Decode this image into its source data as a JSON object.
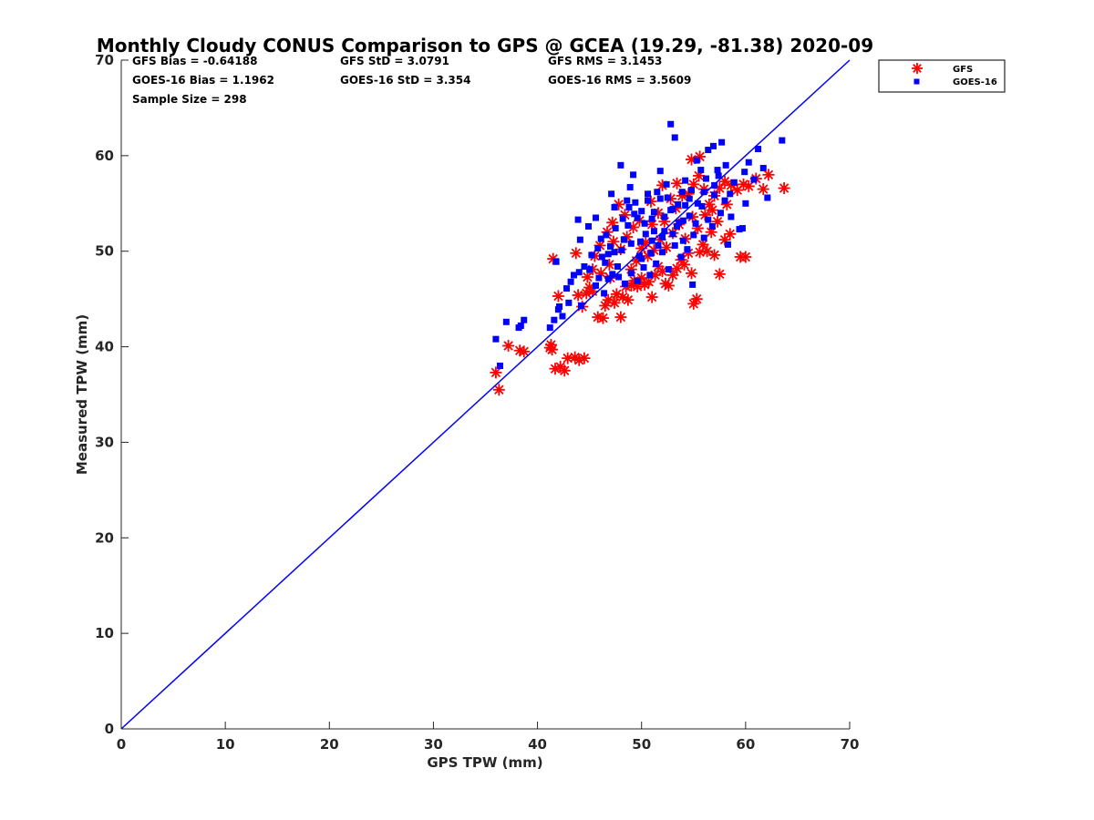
{
  "chart_data": {
    "type": "scatter",
    "title": "Monthly Cloudy CONUS Comparison to GPS @ GCEA (19.29, -81.38) 2020-09",
    "xlabel": "GPS TPW (mm)",
    "ylabel": "Measured TPW (mm)",
    "xlim": [
      0,
      70
    ],
    "ylim": [
      0,
      70
    ],
    "xticks": [
      "0",
      "10",
      "20",
      "30",
      "40",
      "50",
      "60",
      "70"
    ],
    "yticks": [
      "0",
      "10",
      "20",
      "30",
      "40",
      "50",
      "60",
      "70"
    ],
    "grid": false,
    "legend_position": "top-right",
    "reference_line": {
      "x": [
        0,
        70
      ],
      "y": [
        0,
        70
      ],
      "color": "#0000ff"
    },
    "stats": {
      "gfs_bias": "GFS Bias = -0.64188",
      "gfs_std": "GFS StD = 3.0791",
      "gfs_rms": "GFS RMS = 3.1453",
      "goes_bias": "GOES-16 Bias = 1.1962",
      "goes_std": "GOES-16 StD = 3.354",
      "goes_rms": "GOES-16 RMS = 3.5609",
      "sample_size": "Sample Size = 298"
    },
    "series": [
      {
        "name": "GFS",
        "marker": "asterisk",
        "color": "#ff0000",
        "points": [
          [
            36.0,
            37.3
          ],
          [
            36.3,
            35.5
          ],
          [
            37.2,
            40.1
          ],
          [
            38.3,
            39.6
          ],
          [
            38.7,
            39.5
          ],
          [
            41.2,
            39.9
          ],
          [
            41.4,
            39.7
          ],
          [
            41.3,
            40.2
          ],
          [
            41.5,
            49.2
          ],
          [
            41.7,
            37.7
          ],
          [
            42.0,
            45.3
          ],
          [
            42.2,
            37.9
          ],
          [
            42.6,
            37.5
          ],
          [
            42.9,
            38.8
          ],
          [
            43.6,
            38.9
          ],
          [
            44.0,
            38.6
          ],
          [
            44.5,
            38.8
          ],
          [
            43.7,
            49.8
          ],
          [
            43.9,
            45.4
          ],
          [
            44.3,
            44.2
          ],
          [
            44.7,
            45.6
          ],
          [
            45.0,
            46.2
          ],
          [
            45.3,
            45.8
          ],
          [
            45.8,
            43.1
          ],
          [
            46.3,
            43.0
          ],
          [
            46.5,
            44.3
          ],
          [
            46.8,
            44.9
          ],
          [
            47.0,
            47.2
          ],
          [
            47.4,
            44.6
          ],
          [
            47.6,
            45.5
          ],
          [
            48.0,
            43.1
          ],
          [
            48.2,
            45.2
          ],
          [
            48.5,
            46.3
          ],
          [
            48.7,
            44.9
          ],
          [
            49.0,
            46.4
          ],
          [
            49.3,
            46.9
          ],
          [
            49.6,
            46.3
          ],
          [
            50.0,
            47.2
          ],
          [
            50.3,
            46.5
          ],
          [
            50.7,
            46.8
          ],
          [
            51.0,
            45.2
          ],
          [
            51.3,
            47.5
          ],
          [
            51.6,
            48.4
          ],
          [
            52.0,
            47.9
          ],
          [
            52.3,
            46.6
          ],
          [
            52.6,
            46.4
          ],
          [
            53.0,
            47.5
          ],
          [
            53.4,
            48.2
          ],
          [
            53.8,
            49.1
          ],
          [
            54.1,
            48.6
          ],
          [
            54.5,
            49.8
          ],
          [
            54.8,
            47.7
          ],
          [
            55.0,
            44.5
          ],
          [
            55.3,
            45.0
          ],
          [
            55.6,
            49.9
          ],
          [
            55.9,
            50.7
          ],
          [
            56.3,
            50.0
          ],
          [
            56.7,
            52.0
          ],
          [
            57.0,
            49.6
          ],
          [
            57.5,
            47.6
          ],
          [
            58.0,
            51.2
          ],
          [
            58.5,
            51.8
          ],
          [
            59.5,
            49.4
          ],
          [
            60.0,
            49.4
          ],
          [
            45.5,
            49.5
          ],
          [
            46.0,
            50.6
          ],
          [
            46.7,
            52.0
          ],
          [
            47.3,
            51.0
          ],
          [
            48.0,
            50.2
          ],
          [
            48.6,
            51.5
          ],
          [
            49.2,
            52.5
          ],
          [
            49.8,
            53.2
          ],
          [
            50.4,
            50.9
          ],
          [
            51.0,
            52.8
          ],
          [
            51.6,
            54.0
          ],
          [
            52.2,
            53.1
          ],
          [
            52.8,
            55.5
          ],
          [
            53.3,
            54.5
          ],
          [
            53.9,
            55.8
          ],
          [
            54.5,
            56.0
          ],
          [
            55.0,
            57.0
          ],
          [
            55.5,
            57.9
          ],
          [
            56.0,
            56.5
          ],
          [
            56.5,
            54.9
          ],
          [
            57.0,
            55.8
          ],
          [
            57.5,
            56.6
          ],
          [
            58.0,
            57.3
          ],
          [
            58.6,
            56.9
          ],
          [
            59.2,
            56.4
          ],
          [
            59.8,
            57.0
          ],
          [
            60.3,
            56.8
          ],
          [
            61.0,
            57.6
          ],
          [
            61.7,
            56.5
          ],
          [
            62.2,
            58.0
          ],
          [
            63.7,
            56.6
          ],
          [
            54.8,
            59.6
          ],
          [
            55.6,
            59.9
          ],
          [
            49.0,
            48.1
          ],
          [
            49.5,
            49.0
          ],
          [
            50.0,
            50.3
          ],
          [
            50.6,
            49.5
          ],
          [
            51.2,
            50.1
          ],
          [
            51.8,
            51.2
          ],
          [
            52.4,
            50.4
          ],
          [
            53.0,
            51.9
          ],
          [
            53.6,
            52.8
          ],
          [
            54.2,
            51.3
          ],
          [
            54.9,
            53.6
          ],
          [
            55.4,
            52.4
          ],
          [
            56.1,
            53.8
          ],
          [
            56.8,
            54.3
          ],
          [
            57.3,
            53.1
          ],
          [
            58.2,
            54.9
          ],
          [
            47.2,
            53.0
          ],
          [
            47.8,
            54.9
          ],
          [
            48.4,
            53.8
          ],
          [
            50.9,
            55.2
          ],
          [
            52.0,
            56.9
          ],
          [
            53.4,
            57.1
          ],
          [
            44.8,
            47.3
          ],
          [
            45.3,
            48.1
          ],
          [
            46.1,
            47.7
          ],
          [
            46.9,
            48.6
          ]
        ]
      },
      {
        "name": "GOES-16",
        "marker": "square",
        "color": "#0000ff",
        "points": [
          [
            36.0,
            40.8
          ],
          [
            36.4,
            38.0
          ],
          [
            37.0,
            42.6
          ],
          [
            38.2,
            42.0
          ],
          [
            38.7,
            42.8
          ],
          [
            38.4,
            42.2
          ],
          [
            41.2,
            42.0
          ],
          [
            41.6,
            42.8
          ],
          [
            41.8,
            48.9
          ],
          [
            42.1,
            44.2
          ],
          [
            42.4,
            43.2
          ],
          [
            42.8,
            46.1
          ],
          [
            43.2,
            46.8
          ],
          [
            43.5,
            47.5
          ],
          [
            43.9,
            53.3
          ],
          [
            44.1,
            51.2
          ],
          [
            44.2,
            44.3
          ],
          [
            44.5,
            48.4
          ],
          [
            44.9,
            52.6
          ],
          [
            45.2,
            49.6
          ],
          [
            45.6,
            53.5
          ],
          [
            45.9,
            47.2
          ],
          [
            46.1,
            51.3
          ],
          [
            46.4,
            45.6
          ],
          [
            46.8,
            49.7
          ],
          [
            47.1,
            56.0
          ],
          [
            47.4,
            54.6
          ],
          [
            47.7,
            48.4
          ],
          [
            48.0,
            59.0
          ],
          [
            48.3,
            51.2
          ],
          [
            48.6,
            55.3
          ],
          [
            48.9,
            56.7
          ],
          [
            49.2,
            58.0
          ],
          [
            49.6,
            53.5
          ],
          [
            49.9,
            51.0
          ],
          [
            50.3,
            52.9
          ],
          [
            50.6,
            55.3
          ],
          [
            50.9,
            49.8
          ],
          [
            51.2,
            54.1
          ],
          [
            51.5,
            56.2
          ],
          [
            51.8,
            58.4
          ],
          [
            52.2,
            53.6
          ],
          [
            52.5,
            55.6
          ],
          [
            52.8,
            63.3
          ],
          [
            53.2,
            61.9
          ],
          [
            53.5,
            54.9
          ],
          [
            53.9,
            56.2
          ],
          [
            54.2,
            57.4
          ],
          [
            54.6,
            53.7
          ],
          [
            54.9,
            46.5
          ],
          [
            55.3,
            59.5
          ],
          [
            55.7,
            58.5
          ],
          [
            56.0,
            56.2
          ],
          [
            56.4,
            60.6
          ],
          [
            56.9,
            61.0
          ],
          [
            57.3,
            58.5
          ],
          [
            57.7,
            61.4
          ],
          [
            58.1,
            59.0
          ],
          [
            58.5,
            56.0
          ],
          [
            58.9,
            57.2
          ],
          [
            59.4,
            52.3
          ],
          [
            59.9,
            58.3
          ],
          [
            60.3,
            59.3
          ],
          [
            60.8,
            57.5
          ],
          [
            61.2,
            60.7
          ],
          [
            61.7,
            58.7
          ],
          [
            62.1,
            55.6
          ],
          [
            63.5,
            61.6
          ],
          [
            46.5,
            48.8
          ],
          [
            47.0,
            50.5
          ],
          [
            47.5,
            52.4
          ],
          [
            48.1,
            50.1
          ],
          [
            48.7,
            52.7
          ],
          [
            49.3,
            53.9
          ],
          [
            49.8,
            49.5
          ],
          [
            50.4,
            51.8
          ],
          [
            51.0,
            53.4
          ],
          [
            51.6,
            50.6
          ],
          [
            52.2,
            52.1
          ],
          [
            52.8,
            54.3
          ],
          [
            53.4,
            52.6
          ],
          [
            54.0,
            51.1
          ],
          [
            54.6,
            55.5
          ],
          [
            55.2,
            52.9
          ],
          [
            55.8,
            54.7
          ],
          [
            56.4,
            53.3
          ],
          [
            57.0,
            55.9
          ],
          [
            57.6,
            54.0
          ],
          [
            58.3,
            50.7
          ],
          [
            59.7,
            52.4
          ],
          [
            47.8,
            47.3
          ],
          [
            48.4,
            46.6
          ],
          [
            49.0,
            47.7
          ],
          [
            49.6,
            46.9
          ],
          [
            50.2,
            48.3
          ],
          [
            50.8,
            47.5
          ],
          [
            51.4,
            48.7
          ],
          [
            52.0,
            49.9
          ],
          [
            52.6,
            48.1
          ],
          [
            53.2,
            50.6
          ],
          [
            53.8,
            49.4
          ],
          [
            54.4,
            50.2
          ],
          [
            45.0,
            48.1
          ],
          [
            45.6,
            46.4
          ],
          [
            46.2,
            49.4
          ],
          [
            46.8,
            47.1
          ],
          [
            47.4,
            49.9
          ],
          [
            48.2,
            53.4
          ],
          [
            48.8,
            54.6
          ],
          [
            49.4,
            55.1
          ],
          [
            50.0,
            54.2
          ],
          [
            50.6,
            56.0
          ],
          [
            51.2,
            52.1
          ],
          [
            51.8,
            55.5
          ],
          [
            52.4,
            57.0
          ],
          [
            53.0,
            54.4
          ],
          [
            53.6,
            53.0
          ],
          [
            54.2,
            54.8
          ],
          [
            54.8,
            56.4
          ],
          [
            55.4,
            55.0
          ],
          [
            56.2,
            57.6
          ],
          [
            56.8,
            52.6
          ],
          [
            57.4,
            57.9
          ],
          [
            58.0,
            55.3
          ],
          [
            58.6,
            53.6
          ],
          [
            60.0,
            55.0
          ],
          [
            44.0,
            47.8
          ],
          [
            43.0,
            44.6
          ],
          [
            42.0,
            43.9
          ],
          [
            45.8,
            50.3
          ],
          [
            46.6,
            51.7
          ],
          [
            47.2,
            47.6
          ],
          [
            49.0,
            50.8
          ],
          [
            50.0,
            49.2
          ],
          [
            51.0,
            51.1
          ],
          [
            52.0,
            51.5
          ],
          [
            53.0,
            51.8
          ],
          [
            54.0,
            53.2
          ],
          [
            55.0,
            51.7
          ],
          [
            56.0,
            51.4
          ],
          [
            57.0,
            56.9
          ]
        ]
      }
    ]
  }
}
